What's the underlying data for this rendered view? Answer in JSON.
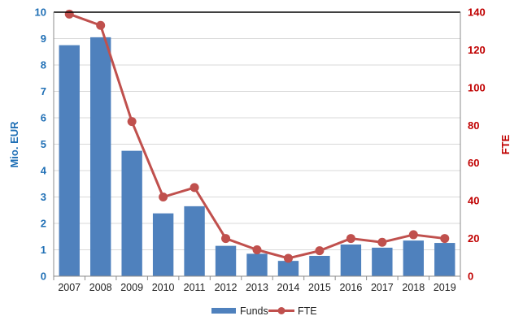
{
  "chart_data": {
    "type": "bar",
    "categories": [
      "2007",
      "2008",
      "2009",
      "2010",
      "2011",
      "2012",
      "2013",
      "2014",
      "2015",
      "2016",
      "2017",
      "2018",
      "2019"
    ],
    "series": [
      {
        "name": "Funds",
        "type": "bar",
        "axis": "left",
        "color": "#4f81bd",
        "values": [
          8.75,
          9.05,
          4.75,
          2.38,
          2.65,
          1.15,
          0.85,
          0.58,
          0.77,
          1.2,
          1.08,
          1.35,
          1.26
        ]
      },
      {
        "name": "FTE",
        "type": "line",
        "axis": "right",
        "color": "#c0504d",
        "values": [
          139,
          133,
          82,
          42,
          47,
          20,
          14,
          9.5,
          13.5,
          20,
          18,
          22,
          20
        ]
      }
    ],
    "ylabel": "Mio. EUR",
    "ylim": [
      0,
      10
    ],
    "yticks": [
      "0",
      "1",
      "2",
      "3",
      "4",
      "5",
      "6",
      "7",
      "8",
      "9",
      "10"
    ],
    "y2label": "FTE",
    "y2lim": [
      0,
      140
    ],
    "y2ticks": [
      "0",
      "20",
      "40",
      "60",
      "80",
      "100",
      "120",
      "140"
    ],
    "grid": true,
    "legend": "bottom"
  }
}
